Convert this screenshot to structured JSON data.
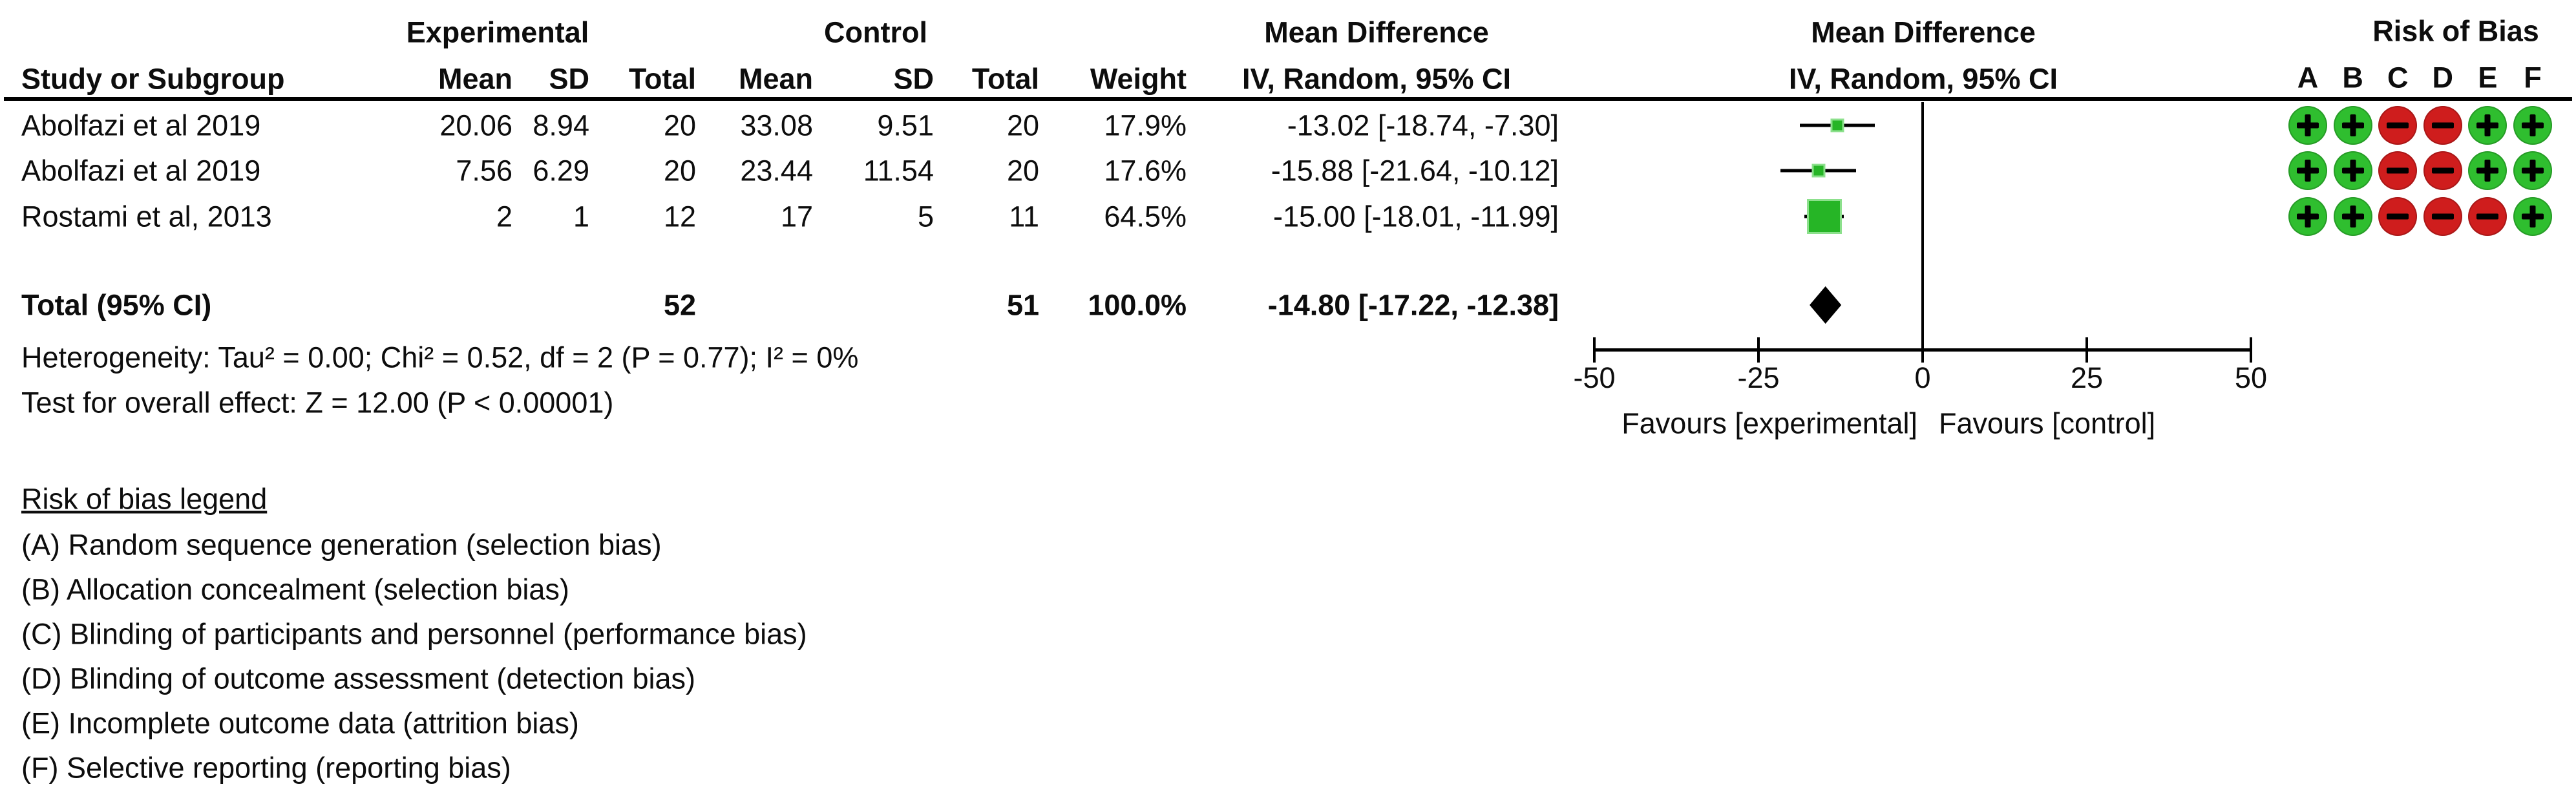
{
  "table": {
    "group_experimental": "Experimental",
    "group_control": "Control",
    "headers": {
      "study": "Study or Subgroup",
      "mean": "Mean",
      "sd": "SD",
      "total": "Total",
      "weight": "Weight",
      "md": "Mean Difference",
      "ci": "IV, Random, 95% CI"
    }
  },
  "studies": [
    {
      "name": "Abolfazi et al 2019",
      "exp_mean": "20.06",
      "exp_sd": "8.94",
      "exp_total": "20",
      "ctl_mean": "33.08",
      "ctl_sd": "9.51",
      "ctl_total": "20",
      "weight": "17.9%",
      "ci_text": "-13.02 [-18.74, -7.30]",
      "est": -13.02,
      "lo": -18.74,
      "hi": -7.3,
      "weight_pct": 17.9,
      "rob": [
        "+",
        "+",
        "-",
        "-",
        "+",
        "+"
      ]
    },
    {
      "name": "Abolfazi et al 2019",
      "exp_mean": "7.56",
      "exp_sd": "6.29",
      "exp_total": "20",
      "ctl_mean": "23.44",
      "ctl_sd": "11.54",
      "ctl_total": "20",
      "weight": "17.6%",
      "ci_text": "-15.88 [-21.64, -10.12]",
      "est": -15.88,
      "lo": -21.64,
      "hi": -10.12,
      "weight_pct": 17.6,
      "rob": [
        "+",
        "+",
        "-",
        "-",
        "+",
        "+"
      ]
    },
    {
      "name": "Rostami et al, 2013",
      "exp_mean": "2",
      "exp_sd": "1",
      "exp_total": "12",
      "ctl_mean": "17",
      "ctl_sd": "5",
      "ctl_total": "11",
      "weight": "64.5%",
      "ci_text": "-15.00 [-18.01, -11.99]",
      "est": -15.0,
      "lo": -18.01,
      "hi": -11.99,
      "weight_pct": 64.5,
      "rob": [
        "+",
        "+",
        "-",
        "-",
        "-",
        "+"
      ]
    }
  ],
  "total_row": {
    "label": "Total (95% CI)",
    "exp_total": "52",
    "ctl_total": "51",
    "weight": "100.0%",
    "ci_text": "-14.80 [-17.22, -12.38]",
    "est": -14.8,
    "lo": -17.22,
    "hi": -12.38
  },
  "footnotes": {
    "heterogeneity": "Heterogeneity: Tau² = 0.00; Chi² = 0.52, df = 2 (P = 0.77); I² = 0%",
    "overall_effect": "Test for overall effect: Z = 12.00 (P < 0.00001)"
  },
  "axis": {
    "xlim": [
      -50,
      50
    ],
    "ticks": [
      -50,
      -25,
      0,
      25,
      50
    ],
    "favours_left": "Favours [experimental]",
    "favours_right": "Favours [control]"
  },
  "risk_of_bias": {
    "title": "Risk of Bias",
    "columns": [
      "A",
      "B",
      "C",
      "D",
      "E",
      "F"
    ]
  },
  "legend": {
    "title": "Risk of bias legend",
    "items": [
      "(A) Random sequence generation (selection bias)",
      "(B) Allocation concealment (selection bias)",
      "(C) Blinding of participants and personnel (performance bias)",
      "(D) Blinding of outcome assessment (detection bias)",
      "(E) Incomplete outcome data (attrition bias)",
      "(F) Selective reporting (reporting bias)"
    ]
  },
  "colors": {
    "low_risk": "#2fbe2f",
    "high_risk": "#cf1d1d",
    "square_fill": "#26b526",
    "square_edge": "#8ce08c",
    "diamond": "#000000",
    "line": "#000000"
  },
  "chart_data": {
    "type": "scatter",
    "subtype": "forest_plot",
    "title": "",
    "effect_measure": "Mean Difference IV, Random, 95% CI",
    "model": "Random effects (IV)",
    "studies": [
      "Abolfazi et al 2019",
      "Abolfazi et al 2019",
      "Rostami et al, 2013"
    ],
    "experimental": {
      "mean": [
        20.06,
        7.56,
        2
      ],
      "sd": [
        8.94,
        6.29,
        1
      ],
      "n": [
        20,
        20,
        12
      ],
      "n_total": 52
    },
    "control": {
      "mean": [
        33.08,
        23.44,
        17
      ],
      "sd": [
        9.51,
        11.54,
        5
      ],
      "n": [
        20,
        20,
        11
      ],
      "n_total": 51
    },
    "weights_pct": [
      17.9,
      17.6,
      64.5
    ],
    "estimates": [
      -13.02,
      -15.88,
      -15.0
    ],
    "ci_low": [
      -18.74,
      -21.64,
      -18.01
    ],
    "ci_high": [
      -7.3,
      -10.12,
      -11.99
    ],
    "pooled": {
      "estimate": -14.8,
      "ci_low": -17.22,
      "ci_high": -12.38,
      "weight_pct": 100.0
    },
    "heterogeneity": {
      "tau2": 0.0,
      "chi2": 0.52,
      "df": 2,
      "p": 0.77,
      "i2_pct": 0
    },
    "overall_effect": {
      "z": 12.0,
      "p": "< 0.00001"
    },
    "xlim": [
      -50,
      50
    ],
    "x_ticks": [
      -50,
      -25,
      0,
      25,
      50
    ],
    "x_annotations": [
      "Favours [experimental]",
      "Favours [control]"
    ],
    "risk_of_bias": {
      "columns": [
        "A",
        "B",
        "C",
        "D",
        "E",
        "F"
      ],
      "judgements": [
        [
          "low",
          "low",
          "high",
          "high",
          "low",
          "low"
        ],
        [
          "low",
          "low",
          "high",
          "high",
          "low",
          "low"
        ],
        [
          "low",
          "low",
          "high",
          "high",
          "high",
          "low"
        ]
      ]
    }
  }
}
